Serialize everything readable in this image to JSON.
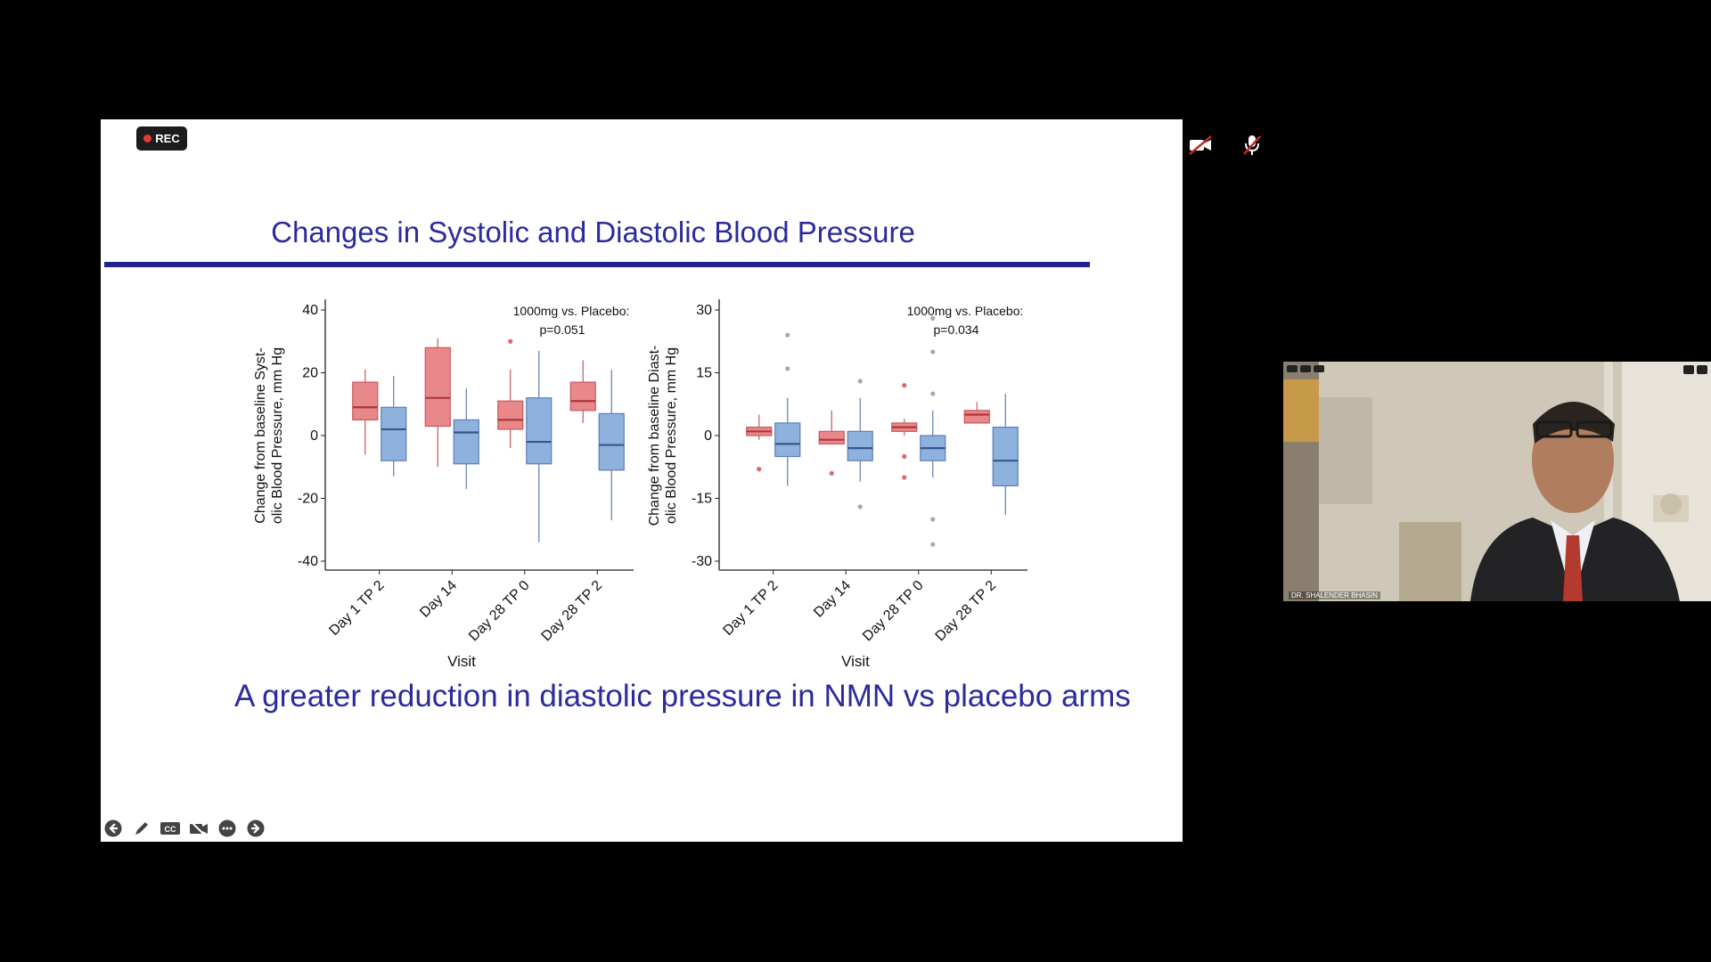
{
  "recording": {
    "label": "REC"
  },
  "slide": {
    "title": "Changes in Systolic and Diastolic Blood Pressure",
    "conclusion": "A greater reduction in diastolic pressure in NMN vs placebo arms"
  },
  "participant": {
    "name": "DR. SHALENDER BHASIN"
  },
  "colors": {
    "title": "#2b2b9e",
    "rule": "#22228f",
    "treatment": "#e8888a",
    "placebo": "#8fb1de"
  },
  "controls": [
    "back-arrow-icon",
    "pen-icon",
    "captions-icon",
    "camera-off-icon",
    "more-icon",
    "forward-arrow-icon"
  ],
  "top_controls": [
    "video-off-icon",
    "microphone-off-icon"
  ],
  "chart_data": [
    {
      "type": "box",
      "ylabel": "Change from baseline Syst-\nolic Blood Pressure, mm Hg",
      "xlabel": "Visit",
      "categories": [
        "Day 1 TP 2",
        "Day 14",
        "Day 28 TP 0",
        "Day 28 TP 2"
      ],
      "yticks": [
        -40,
        -20,
        0,
        20,
        40
      ],
      "ylim": [
        -40,
        40
      ],
      "annotation": [
        "1000mg vs. Placebo:",
        "p=0.051"
      ],
      "series": [
        {
          "group": "treatment",
          "boxes": [
            {
              "lo": -6,
              "q1": 5,
              "med": 9,
              "q3": 17,
              "hi": 21,
              "out": []
            },
            {
              "lo": -10,
              "q1": 3,
              "med": 12,
              "q3": 28,
              "hi": 31,
              "out": []
            },
            {
              "lo": -4,
              "q1": 2,
              "med": 5,
              "q3": 11,
              "hi": 21,
              "out": [
                30
              ]
            },
            {
              "lo": 4,
              "q1": 8,
              "med": 11,
              "q3": 17,
              "hi": 24,
              "out": []
            }
          ]
        },
        {
          "group": "placebo",
          "boxes": [
            {
              "lo": -13,
              "q1": -8,
              "med": 2,
              "q3": 9,
              "hi": 19,
              "out": []
            },
            {
              "lo": -17,
              "q1": -9,
              "med": 1,
              "q3": 5,
              "hi": 15,
              "out": []
            },
            {
              "lo": -34,
              "q1": -9,
              "med": -2,
              "q3": 12,
              "hi": 27,
              "out": []
            },
            {
              "lo": -27,
              "q1": -11,
              "med": -3,
              "q3": 7,
              "hi": 21,
              "out": []
            }
          ]
        }
      ]
    },
    {
      "type": "box",
      "ylabel": "Change from baseline Diast-\nolic Blood Pressure, mm Hg",
      "xlabel": "Visit",
      "categories": [
        "Day 1 TP 2",
        "Day 14",
        "Day 28 TP 0",
        "Day 28 TP 2"
      ],
      "yticks": [
        -30,
        -15,
        0,
        15,
        30
      ],
      "ylim": [
        -30,
        30
      ],
      "annotation": [
        "1000mg vs. Placebo:",
        "p=0.034"
      ],
      "series": [
        {
          "group": "treatment",
          "boxes": [
            {
              "lo": -1,
              "q1": 0,
              "med": 1,
              "q3": 2,
              "hi": 5,
              "out": [
                -8
              ]
            },
            {
              "lo": -2,
              "q1": -2,
              "med": -1,
              "q3": 1,
              "hi": 6,
              "out": [
                -9
              ]
            },
            {
              "lo": 0,
              "q1": 1,
              "med": 2,
              "q3": 3,
              "hi": 4,
              "out": [
                12,
                -5,
                -10
              ]
            },
            {
              "lo": 3,
              "q1": 3,
              "med": 5,
              "q3": 6,
              "hi": 8,
              "out": []
            }
          ]
        },
        {
          "group": "placebo",
          "boxes": [
            {
              "lo": -12,
              "q1": -5,
              "med": -2,
              "q3": 3,
              "hi": 9,
              "out": [
                16,
                24
              ]
            },
            {
              "lo": -11,
              "q1": -6,
              "med": -3,
              "q3": 1,
              "hi": 9,
              "out": [
                13,
                -17
              ]
            },
            {
              "lo": -10,
              "q1": -6,
              "med": -3,
              "q3": 0,
              "hi": 6,
              "out": [
                10,
                20,
                28,
                -20,
                -26
              ]
            },
            {
              "lo": -19,
              "q1": -12,
              "med": -6,
              "q3": 2,
              "hi": 10,
              "out": []
            }
          ]
        }
      ]
    }
  ]
}
